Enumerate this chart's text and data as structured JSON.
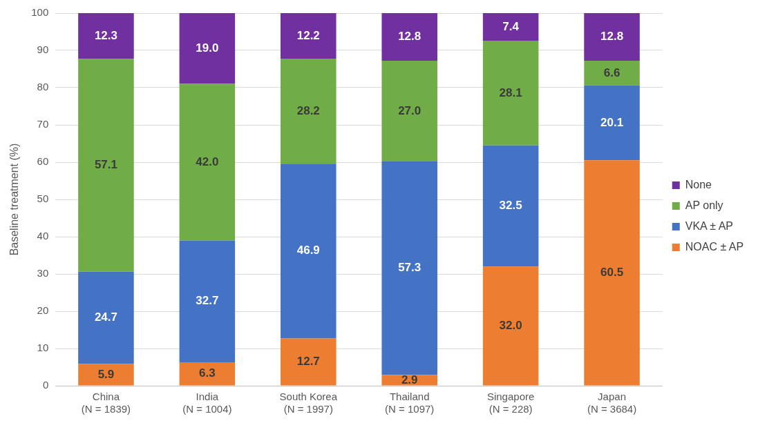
{
  "chart_data": {
    "type": "bar",
    "stacked": true,
    "ylabel": "Baseline treatment (%)",
    "categories": [
      "China\n(N = 1839)",
      "India\n(N = 1004)",
      "South Korea\n(N = 1997)",
      "Thailand\n(N = 1097)",
      "Singapore\n(N = 228)",
      "Japan\n(N = 3684)"
    ],
    "series": [
      {
        "name": "NOAC ± AP",
        "color": "#ed7d31",
        "values": [
          5.9,
          6.3,
          12.7,
          2.9,
          32.0,
          60.5
        ],
        "value_labels": [
          "5.9",
          "6.3",
          "12.7",
          "2.9",
          "32.0",
          "60.5"
        ]
      },
      {
        "name": "VKA ± AP",
        "color": "#4472c4",
        "values": [
          24.7,
          32.7,
          46.9,
          57.3,
          32.5,
          20.1
        ],
        "value_labels": [
          "24.7",
          "32.7",
          "46.9",
          "57.3",
          "32.5",
          "20.1"
        ]
      },
      {
        "name": "AP only",
        "color": "#70ad47",
        "values": [
          57.1,
          42.0,
          28.2,
          27.0,
          28.1,
          6.6
        ],
        "value_labels": [
          "57.1",
          "42.0",
          "28.2",
          "27.0",
          "28.1",
          "6.6"
        ]
      },
      {
        "name": "None",
        "color": "#7030a0",
        "values": [
          12.3,
          19.0,
          12.2,
          12.8,
          7.4,
          12.8
        ],
        "value_labels": [
          "12.3",
          "19.0",
          "12.2",
          "12.8",
          "7.4",
          "12.8"
        ]
      }
    ],
    "ylim": [
      0,
      100
    ],
    "yticks": [
      0,
      10,
      20,
      30,
      40,
      50,
      60,
      70,
      80,
      90,
      100
    ],
    "grid": "y",
    "legend": "right"
  }
}
